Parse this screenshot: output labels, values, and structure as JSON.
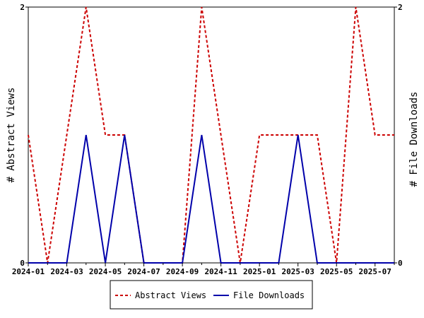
{
  "chart_data": {
    "type": "line",
    "x": [
      "2024-01",
      "2024-02",
      "2024-03",
      "2024-04",
      "2024-05",
      "2024-06",
      "2024-07",
      "2024-08",
      "2024-09",
      "2024-10",
      "2024-11",
      "2024-12",
      "2025-01",
      "2025-02",
      "2025-03",
      "2025-04",
      "2025-05",
      "2025-06",
      "2025-07",
      "2025-08"
    ],
    "x_tick_labels": [
      "2024-01",
      "2024-03",
      "2024-05",
      "2024-07",
      "2024-09",
      "2024-11",
      "2025-01",
      "2025-03",
      "2025-05",
      "2025-07"
    ],
    "series": [
      {
        "name": "Abstract Views",
        "axis": "left",
        "color": "#cc0000",
        "dash": "dashed",
        "values": [
          1,
          0,
          1,
          2,
          1,
          1,
          0,
          0,
          0,
          2,
          1,
          0,
          1,
          1,
          1,
          1,
          0,
          2,
          1,
          1
        ]
      },
      {
        "name": "File Downloads",
        "axis": "right",
        "color": "#0000aa",
        "dash": "solid",
        "values": [
          0,
          0,
          0,
          1,
          0,
          1,
          0,
          0,
          0,
          1,
          0,
          0,
          0,
          0,
          1,
          0,
          0,
          0,
          0,
          0
        ]
      }
    ],
    "ylabel_left": "# Abstract Views",
    "ylabel_right": "# File Downloads",
    "ylim_left": [
      0,
      2
    ],
    "ylim_right": [
      0,
      2
    ],
    "y_ticks_left": [
      "0",
      "2"
    ],
    "y_ticks_right": [
      "0",
      "2"
    ],
    "grid": false,
    "legend": "bottom"
  }
}
